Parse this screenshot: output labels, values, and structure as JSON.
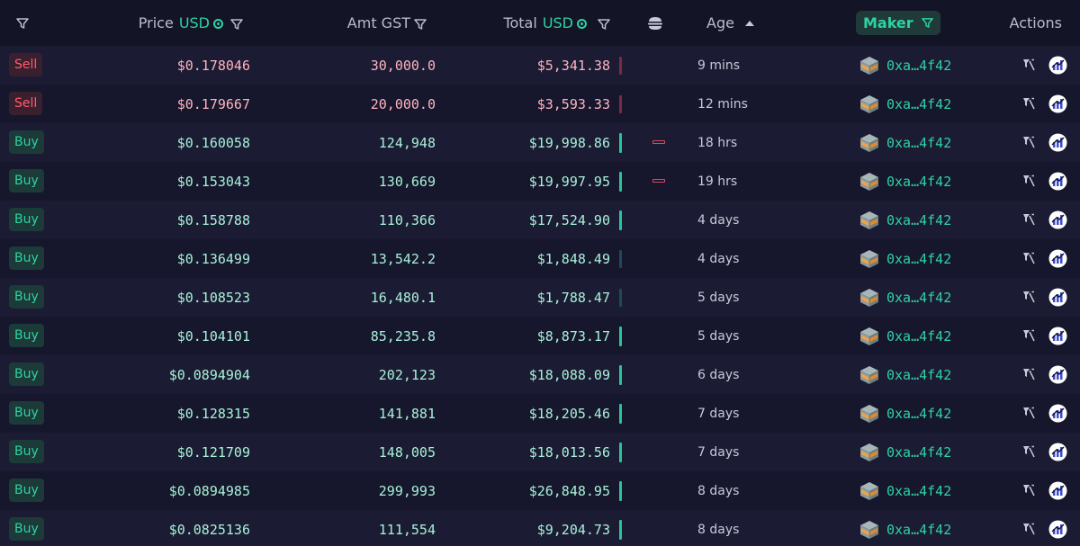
{
  "header": {
    "filter_label": "",
    "price_label": "Price",
    "price_currency": "USD",
    "amount_label": "Amt GST",
    "total_label": "Total",
    "total_currency": "USD",
    "age_label": "Age",
    "maker_label": "Maker",
    "actions_label": "Actions"
  },
  "colors": {
    "accent": "#2fd1a4",
    "sell": "#ff5b6e",
    "background": "#131426"
  },
  "icons": {
    "filter": "filter-icon",
    "coin": "coin-icon",
    "burger": "burger-icon",
    "sort": "sort-asc-icon",
    "maker": "cube-icon",
    "action_filter": "filter-funnel-icon",
    "action_chart": "chart-icon"
  },
  "rows": [
    {
      "type": "Sell",
      "price": "$0.178046",
      "amount": "30,000.0",
      "total": "$5,341.38",
      "age": "9 mins",
      "maker": "0xa…4f42",
      "bar": "sell",
      "mark": false
    },
    {
      "type": "Sell",
      "price": "$0.179667",
      "amount": "20,000.0",
      "total": "$3,593.33",
      "age": "12 mins",
      "maker": "0xa…4f42",
      "bar": "sell",
      "mark": false
    },
    {
      "type": "Buy",
      "price": "$0.160058",
      "amount": "124,948",
      "total": "$19,998.86",
      "age": "18 hrs",
      "maker": "0xa…4f42",
      "bar": "buy",
      "mark": true
    },
    {
      "type": "Buy",
      "price": "$0.153043",
      "amount": "130,669",
      "total": "$19,997.95",
      "age": "19 hrs",
      "maker": "0xa…4f42",
      "bar": "buy",
      "mark": true
    },
    {
      "type": "Buy",
      "price": "$0.158788",
      "amount": "110,366",
      "total": "$17,524.90",
      "age": "4 days",
      "maker": "0xa…4f42",
      "bar": "buy",
      "mark": false
    },
    {
      "type": "Buy",
      "price": "$0.136499",
      "amount": "13,542.2",
      "total": "$1,848.49",
      "age": "4 days",
      "maker": "0xa…4f42",
      "bar": "dim",
      "mark": false
    },
    {
      "type": "Buy",
      "price": "$0.108523",
      "amount": "16,480.1",
      "total": "$1,788.47",
      "age": "5 days",
      "maker": "0xa…4f42",
      "bar": "dim",
      "mark": false
    },
    {
      "type": "Buy",
      "price": "$0.104101",
      "amount": "85,235.8",
      "total": "$8,873.17",
      "age": "5 days",
      "maker": "0xa…4f42",
      "bar": "buy",
      "mark": false
    },
    {
      "type": "Buy",
      "price": "$0.0894904",
      "amount": "202,123",
      "total": "$18,088.09",
      "age": "6 days",
      "maker": "0xa…4f42",
      "bar": "buy",
      "mark": false
    },
    {
      "type": "Buy",
      "price": "$0.128315",
      "amount": "141,881",
      "total": "$18,205.46",
      "age": "7 days",
      "maker": "0xa…4f42",
      "bar": "buy",
      "mark": false
    },
    {
      "type": "Buy",
      "price": "$0.121709",
      "amount": "148,005",
      "total": "$18,013.56",
      "age": "7 days",
      "maker": "0xa…4f42",
      "bar": "buy",
      "mark": false
    },
    {
      "type": "Buy",
      "price": "$0.0894985",
      "amount": "299,993",
      "total": "$26,848.95",
      "age": "8 days",
      "maker": "0xa…4f42",
      "bar": "buy",
      "mark": false
    },
    {
      "type": "Buy",
      "price": "$0.0825136",
      "amount": "111,554",
      "total": "$9,204.73",
      "age": "8 days",
      "maker": "0xa…4f42",
      "bar": "buy",
      "mark": false
    }
  ]
}
